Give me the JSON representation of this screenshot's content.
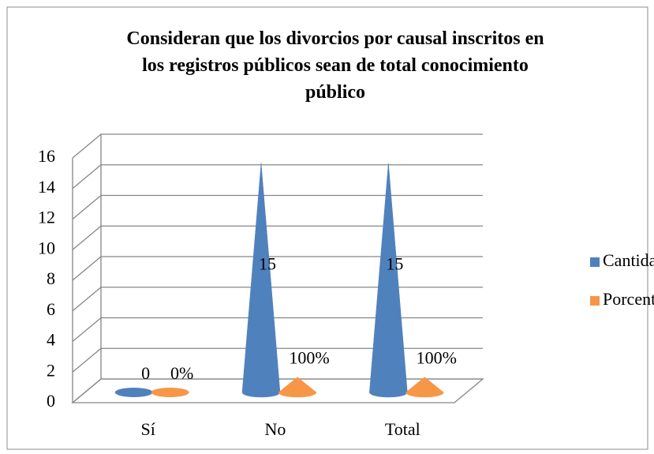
{
  "chart_data": {
    "type": "cone",
    "title": "Consideran que los divorcios por causal inscritos en los registros públicos sean de total conocimiento público",
    "categories": [
      "Sí",
      "No",
      "Total"
    ],
    "series": [
      {
        "name": "Cantidad",
        "color": "#4f81bd",
        "values": [
          0,
          15,
          15
        ]
      },
      {
        "name": "Porcentaje",
        "color": "#f79646",
        "values": [
          0,
          1,
          1
        ],
        "value_labels": [
          "0%",
          "100%",
          "100%"
        ]
      }
    ],
    "ylim": [
      0,
      16
    ],
    "yticks": [
      0,
      2,
      4,
      6,
      8,
      10,
      12,
      14,
      16
    ],
    "grid": true,
    "legend": "right"
  }
}
